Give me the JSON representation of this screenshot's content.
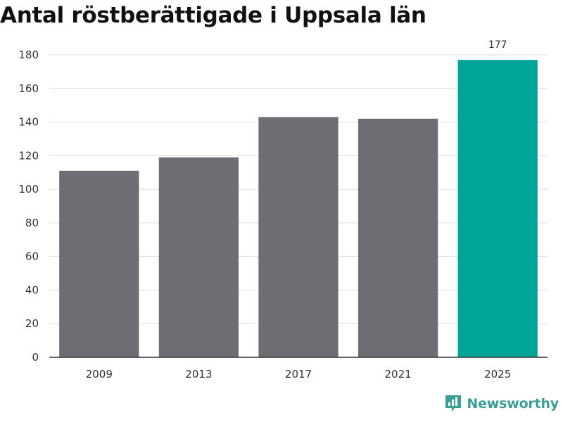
{
  "chart_data": {
    "type": "bar",
    "title": "Antal röstberättigade i Uppsala län",
    "categories": [
      "2009",
      "2013",
      "2017",
      "2021",
      "2025"
    ],
    "values": [
      111,
      119,
      143,
      142,
      177
    ],
    "data_labels": [
      null,
      null,
      null,
      null,
      "177"
    ],
    "highlight_index": 4,
    "xlabel": "",
    "ylabel": "",
    "ylim": [
      0,
      180
    ],
    "yticks": [
      0,
      20,
      40,
      60,
      80,
      100,
      120,
      140,
      160,
      180
    ],
    "grid": true,
    "legend": "none",
    "colors": {
      "bar": "#6e6d73",
      "highlight": "#00a59a",
      "grid": "#dddddd",
      "axis": "#333333"
    }
  },
  "brand": {
    "name": "Newsworthy",
    "logo_icon": "newsworthy-logo-icon",
    "color": "#3a9e95"
  }
}
